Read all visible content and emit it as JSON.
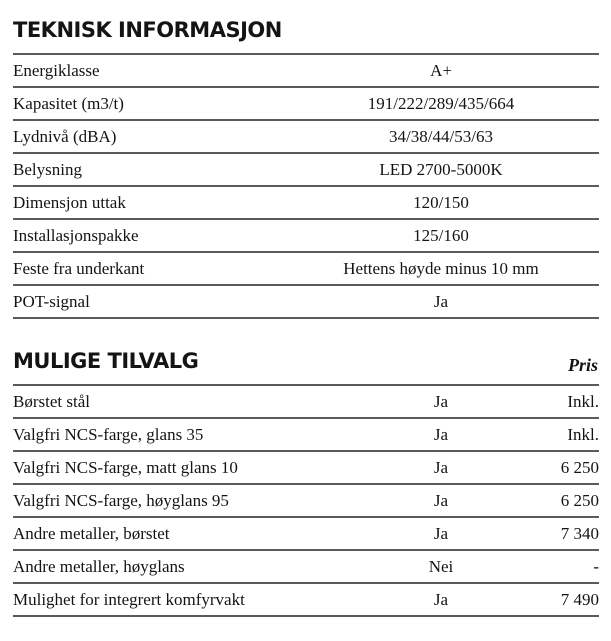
{
  "technical": {
    "title": "TEKNISK INFORMASJON",
    "rows": [
      {
        "label": "Energiklasse",
        "value": "A+"
      },
      {
        "label": "Kapasitet (m3/t)",
        "value": "191/222/289/435/664"
      },
      {
        "label": "Lydnivå (dBA)",
        "value": "34/38/44/53/63"
      },
      {
        "label": "Belysning",
        "value": "LED 2700-5000K"
      },
      {
        "label": "Dimensjon uttak",
        "value": "120/150"
      },
      {
        "label": "Installasjonspakke",
        "value": "125/160"
      },
      {
        "label": "Feste fra underkant",
        "value": "Hettens høyde minus 10 mm"
      },
      {
        "label": "POT-signal",
        "value": "Ja"
      }
    ]
  },
  "options": {
    "title": "MULIGE TILVALG",
    "price_header": "Pris",
    "rows": [
      {
        "label": "Børstet stål",
        "available": "Ja",
        "price": "Inkl."
      },
      {
        "label": "Valgfri NCS-farge, glans 35",
        "available": "Ja",
        "price": "Inkl."
      },
      {
        "label": "Valgfri NCS-farge, matt glans 10",
        "available": "Ja",
        "price": "6 250"
      },
      {
        "label": "Valgfri NCS-farge, høyglans 95",
        "available": "Ja",
        "price": "6 250"
      },
      {
        "label": "Andre metaller, børstet",
        "available": "Ja",
        "price": "7 340"
      },
      {
        "label": "Andre metaller, høyglans",
        "available": "Nei",
        "price": "-"
      },
      {
        "label": "Mulighet for integrert komfyrvakt",
        "available": "Ja",
        "price": "7 490"
      }
    ]
  }
}
